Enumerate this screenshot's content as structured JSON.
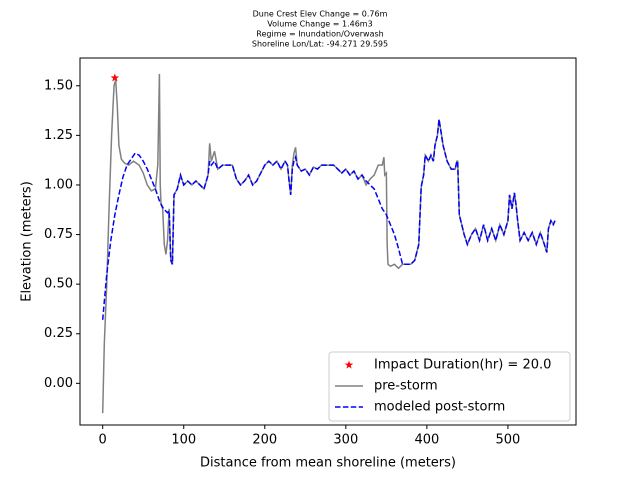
{
  "chart_data": {
    "type": "line",
    "title_lines": [
      "Dune Crest Elev Change = 0.76m",
      "Volume Change = 1.46m3",
      "Regime = Inundation/Overwash",
      "Shoreline Lon/Lat: -94.271 29.595"
    ],
    "x_label": "Distance from mean shoreline (meters)",
    "y_label": "Elevation (meters)",
    "xlim": [
      -28,
      584
    ],
    "ylim": [
      -0.21,
      1.64
    ],
    "xticks": [
      0,
      100,
      200,
      300,
      400,
      500
    ],
    "yticks": [
      {
        "value": 0,
        "label": "0.00"
      },
      {
        "value": 0.25,
        "label": "0.25"
      },
      {
        "value": 0.5,
        "label": "0.50"
      },
      {
        "value": 0.75,
        "label": "0.75"
      },
      {
        "value": 1,
        "label": "1.00"
      },
      {
        "value": 1.25,
        "label": "1.25"
      },
      {
        "value": 1.5,
        "label": "1.50"
      }
    ],
    "legend": "lower right",
    "marker": {
      "name": "Impact Duration(hr) = 20.0",
      "color": "#ff0000",
      "x": 15,
      "y": 1.54
    },
    "series": [
      {
        "name": "pre-storm",
        "color": "#808080",
        "dash": false,
        "x": [
          0,
          2,
          5,
          8,
          11,
          14,
          16,
          18,
          20,
          23,
          27,
          32,
          38,
          45,
          50,
          55,
          60,
          65,
          68,
          70,
          71,
          72,
          74,
          76,
          78,
          80,
          82,
          84,
          86,
          88,
          92,
          96,
          100,
          105,
          110,
          115,
          120,
          125,
          130,
          132,
          134,
          138,
          142,
          148,
          155,
          160,
          165,
          170,
          175,
          180,
          185,
          190,
          195,
          200,
          205,
          210,
          215,
          220,
          225,
          228,
          230,
          232,
          234,
          236,
          238,
          240,
          245,
          250,
          255,
          260,
          265,
          270,
          275,
          280,
          285,
          290,
          295,
          300,
          305,
          310,
          315,
          320,
          325,
          330,
          335,
          340,
          345,
          347,
          348,
          350,
          351,
          352,
          355,
          360,
          365,
          370,
          375,
          380,
          385,
          390,
          393,
          396,
          398,
          402,
          405,
          408,
          410,
          413,
          415,
          417,
          420,
          425,
          430,
          435,
          437,
          438,
          440,
          443,
          446,
          450,
          455,
          460,
          465,
          470,
          475,
          480,
          485,
          490,
          495,
          500,
          502,
          505,
          508,
          510,
          512,
          515,
          520,
          525,
          530,
          535,
          540,
          545,
          548,
          550,
          553,
          556,
          558
        ],
        "values": [
          -0.15,
          0.2,
          0.5,
          0.9,
          1.25,
          1.5,
          1.53,
          1.4,
          1.2,
          1.13,
          1.11,
          1.1,
          1.12,
          1.1,
          1.06,
          1.0,
          0.97,
          0.98,
          1.1,
          1.56,
          1.0,
          0.9,
          0.88,
          0.7,
          0.65,
          0.72,
          0.88,
          0.62,
          0.6,
          0.95,
          0.98,
          1.05,
          1.0,
          1.02,
          1.0,
          1.02,
          1.0,
          0.98,
          1.05,
          1.21,
          1.12,
          1.17,
          1.08,
          1.1,
          1.1,
          1.1,
          1.03,
          1.0,
          1.02,
          1.05,
          1.0,
          1.02,
          1.06,
          1.1,
          1.12,
          1.1,
          1.12,
          1.08,
          1.12,
          1.1,
          1.02,
          0.95,
          1.1,
          1.16,
          1.19,
          1.1,
          1.07,
          1.08,
          1.05,
          1.09,
          1.08,
          1.1,
          1.1,
          1.1,
          1.1,
          1.08,
          1.06,
          1.08,
          1.05,
          1.07,
          1.03,
          1.05,
          1.0,
          1.03,
          1.05,
          1.1,
          1.1,
          1.14,
          1.05,
          1.06,
          0.7,
          0.6,
          0.59,
          0.6,
          0.58,
          0.6,
          0.6,
          0.6,
          0.62,
          0.7,
          0.99,
          1.05,
          1.15,
          1.12,
          1.15,
          1.12,
          1.2,
          1.25,
          1.33,
          1.28,
          1.2,
          1.12,
          1.08,
          1.08,
          1.12,
          1.12,
          0.85,
          0.8,
          0.75,
          0.7,
          0.75,
          0.78,
          0.72,
          0.8,
          0.72,
          0.78,
          0.72,
          0.8,
          0.75,
          0.82,
          0.95,
          0.88,
          0.96,
          0.9,
          0.82,
          0.72,
          0.76,
          0.72,
          0.76,
          0.7,
          0.76,
          0.7,
          0.66,
          0.78,
          0.82,
          0.8,
          0.82
        ]
      },
      {
        "name": "modeled post-storm",
        "color": "#0000ff",
        "dash": true,
        "x": [
          0,
          5,
          10,
          15,
          20,
          25,
          30,
          35,
          40,
          45,
          50,
          55,
          60,
          65,
          70,
          75,
          80,
          82,
          84,
          86,
          88,
          92,
          96,
          100,
          105,
          110,
          115,
          120,
          125,
          130,
          132,
          134,
          138,
          142,
          148,
          155,
          160,
          165,
          170,
          175,
          180,
          185,
          190,
          195,
          200,
          205,
          210,
          215,
          220,
          225,
          228,
          230,
          232,
          234,
          236,
          238,
          240,
          245,
          250,
          255,
          260,
          265,
          270,
          275,
          280,
          285,
          290,
          295,
          300,
          305,
          310,
          315,
          320,
          325,
          330,
          335,
          340,
          345,
          350,
          355,
          360,
          365,
          370,
          375,
          380,
          385,
          390,
          393,
          396,
          398,
          402,
          405,
          408,
          410,
          413,
          415,
          417,
          420,
          425,
          430,
          435,
          437,
          438,
          440,
          443,
          446,
          450,
          455,
          460,
          465,
          470,
          475,
          480,
          485,
          490,
          495,
          500,
          502,
          505,
          508,
          510,
          512,
          515,
          520,
          525,
          530,
          535,
          540,
          545,
          548,
          550,
          553,
          556,
          558
        ],
        "values": [
          0.32,
          0.55,
          0.72,
          0.85,
          0.95,
          1.04,
          1.1,
          1.13,
          1.16,
          1.15,
          1.12,
          1.08,
          1.03,
          0.98,
          0.92,
          0.88,
          0.86,
          0.87,
          0.62,
          0.6,
          0.95,
          0.98,
          1.05,
          1.0,
          1.02,
          1.0,
          1.02,
          1.0,
          0.98,
          1.05,
          1.12,
          1.1,
          1.12,
          1.08,
          1.1,
          1.1,
          1.1,
          1.03,
          1.0,
          1.02,
          1.05,
          1.0,
          1.02,
          1.06,
          1.1,
          1.12,
          1.1,
          1.12,
          1.08,
          1.12,
          1.1,
          1.02,
          0.95,
          1.08,
          1.12,
          1.14,
          1.1,
          1.07,
          1.08,
          1.05,
          1.09,
          1.08,
          1.1,
          1.1,
          1.1,
          1.1,
          1.08,
          1.06,
          1.08,
          1.05,
          1.07,
          1.03,
          1.05,
          1.02,
          1.0,
          0.98,
          0.93,
          0.88,
          0.85,
          0.8,
          0.75,
          0.68,
          0.6,
          0.6,
          0.6,
          0.62,
          0.7,
          0.99,
          1.05,
          1.15,
          1.12,
          1.15,
          1.12,
          1.2,
          1.25,
          1.33,
          1.28,
          1.2,
          1.12,
          1.08,
          1.08,
          1.12,
          1.12,
          0.85,
          0.8,
          0.75,
          0.7,
          0.75,
          0.78,
          0.72,
          0.8,
          0.72,
          0.78,
          0.72,
          0.8,
          0.75,
          0.82,
          0.95,
          0.88,
          0.96,
          0.9,
          0.82,
          0.72,
          0.76,
          0.72,
          0.76,
          0.7,
          0.76,
          0.7,
          0.66,
          0.78,
          0.82,
          0.8,
          0.82
        ]
      }
    ]
  }
}
